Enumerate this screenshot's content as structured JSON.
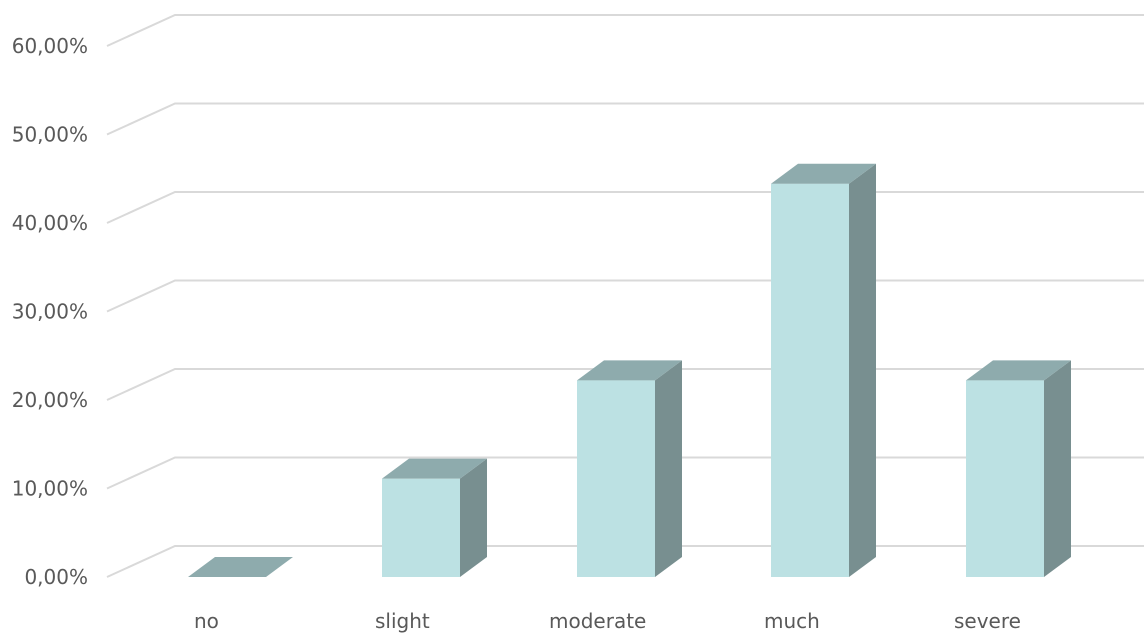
{
  "chart_data": {
    "type": "bar",
    "categories": [
      "no",
      "slight",
      "moderate",
      "much",
      "severe"
    ],
    "values": [
      0.0,
      11.11,
      22.22,
      44.44,
      22.22
    ],
    "yticks": [
      "0,00%",
      "10,00%",
      "20,00%",
      "30,00%",
      "40,00%",
      "50,00%",
      "60,00%"
    ],
    "ylim": [
      0,
      60
    ],
    "grid": true,
    "style": "3d-column",
    "colors": {
      "front": "#bce1e3",
      "top": "#8eabad",
      "side": "#788f90",
      "grid": "#d9d9d9",
      "text": "#595959"
    }
  }
}
